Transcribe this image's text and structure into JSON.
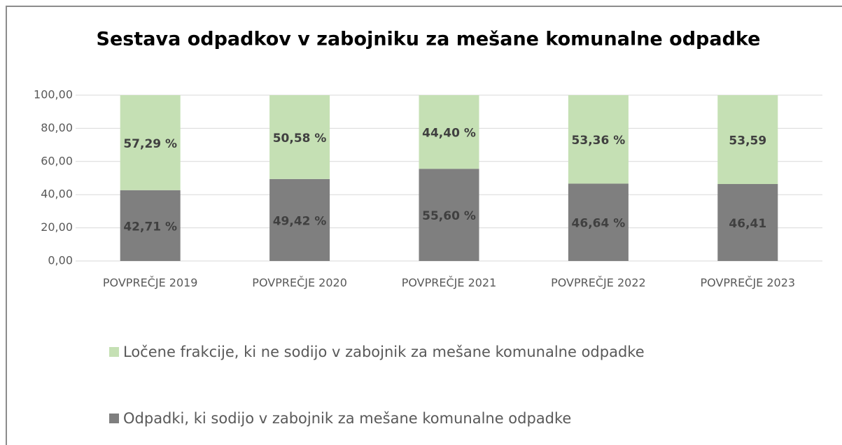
{
  "chart_data": {
    "type": "stacked_bar",
    "title": "Sestava odpadkov v zabojniku za mešane komunalne odpadke",
    "categories": [
      "POVPREČJE 2019",
      "POVPREČJE 2020",
      "POVPREČJE 2021",
      "POVPREČJE 2022",
      "POVPREČJE 2023"
    ],
    "series": [
      {
        "name": "Odpadki, ki sodijo v zabojnik za mešane komunalne odpadke",
        "color": "#7f7f7f",
        "values": [
          42.71,
          49.42,
          55.6,
          46.64,
          46.41
        ],
        "value_labels": [
          "42,71 %",
          "49,42 %",
          "55,60 %",
          "46,64 %",
          "46,41"
        ]
      },
      {
        "name": "Ločene frakcije, ki ne sodijo v zabojnik za mešane komunalne odpadke",
        "color": "#c5e0b4",
        "values": [
          57.29,
          50.58,
          44.4,
          53.36,
          53.59
        ],
        "value_labels": [
          "57,29 %",
          "50,58 %",
          "44,40 %",
          "53,36 %",
          "53,59"
        ]
      }
    ],
    "ylim": [
      0,
      100
    ],
    "yticks": [
      {
        "value": 0,
        "label": "0,00"
      },
      {
        "value": 20,
        "label": "20,00"
      },
      {
        "value": 40,
        "label": "40,00"
      },
      {
        "value": 60,
        "label": "60,00"
      },
      {
        "value": 80,
        "label": "80,00"
      },
      {
        "value": 100,
        "label": "100,00"
      }
    ],
    "grid": true
  }
}
